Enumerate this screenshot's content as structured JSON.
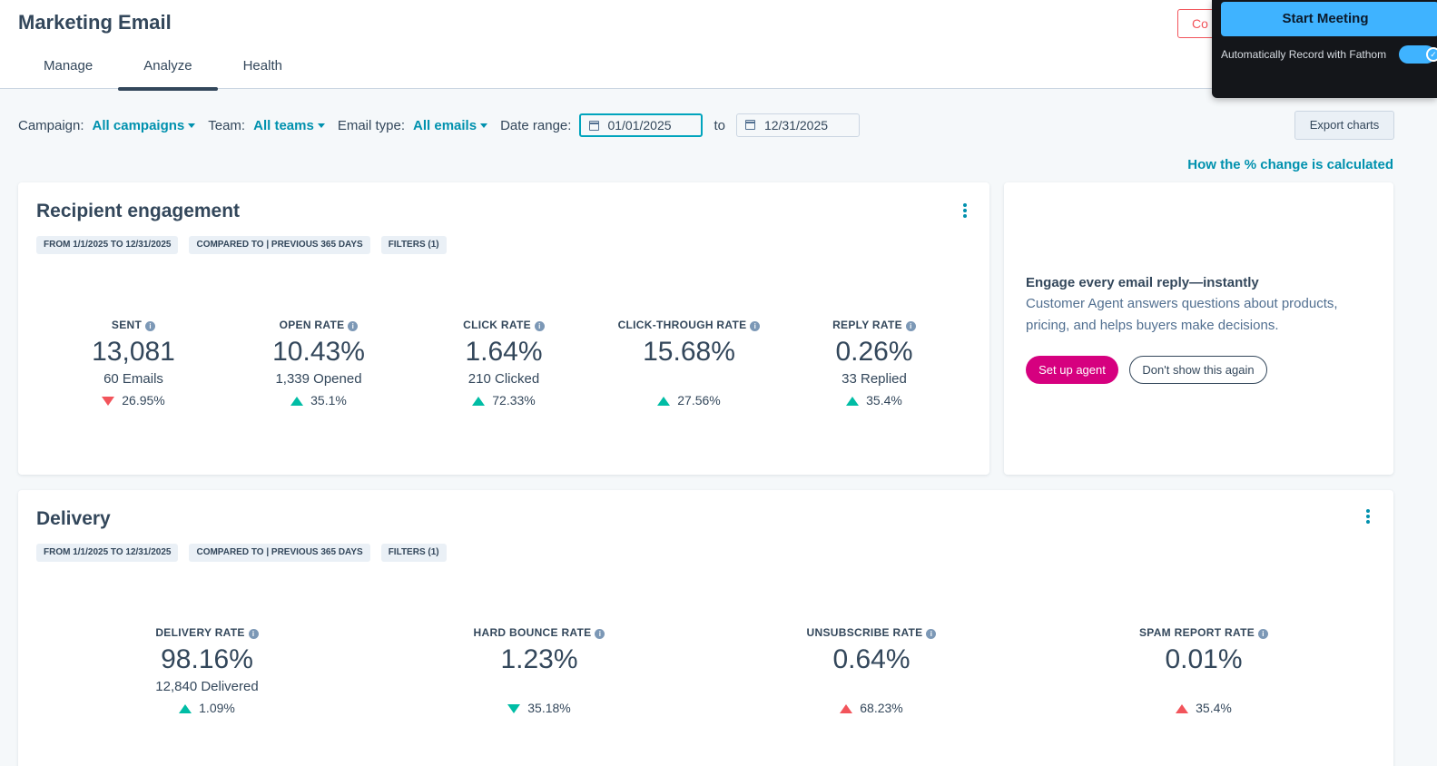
{
  "header": {
    "title": "Marketing Email",
    "tabs": [
      {
        "label": "Manage"
      },
      {
        "label": "Analyze"
      },
      {
        "label": "Health"
      }
    ],
    "partial_button_label": "Co"
  },
  "fathom": {
    "start_meeting_label": "Start Meeting",
    "auto_record_label": "Automatically Record with Fathom",
    "auto_record_enabled": true
  },
  "filters": {
    "campaign_label": "Campaign:",
    "campaign_value": "All campaigns",
    "team_label": "Team:",
    "team_value": "All teams",
    "email_type_label": "Email type:",
    "email_type_value": "All emails",
    "date_range_label": "Date range:",
    "date_from": "01/01/2025",
    "to_label": "to",
    "date_to": "12/31/2025"
  },
  "toolbar": {
    "export_label": "Export charts",
    "how_change_link": "How the % change is calculated"
  },
  "engagement": {
    "title": "Recipient engagement",
    "chips": [
      "From 1/1/2025 to 12/31/2025",
      "Compared to | Previous 365 days",
      "Filters (1)"
    ],
    "metrics": [
      {
        "label": "SENT",
        "value": "13,081",
        "sub": "60 Emails",
        "change": "26.95%",
        "direction": "down"
      },
      {
        "label": "OPEN RATE",
        "value": "10.43%",
        "sub": "1,339 Opened",
        "change": "35.1%",
        "direction": "up"
      },
      {
        "label": "CLICK RATE",
        "value": "1.64%",
        "sub": "210 Clicked",
        "change": "72.33%",
        "direction": "up"
      },
      {
        "label": "CLICK-THROUGH RATE",
        "value": "15.68%",
        "sub": "",
        "change": "27.56%",
        "direction": "up"
      },
      {
        "label": "REPLY RATE",
        "value": "0.26%",
        "sub": "33 Replied",
        "change": "35.4%",
        "direction": "up"
      }
    ]
  },
  "promo": {
    "title": "Engage every email reply—instantly",
    "text": "Customer Agent answers questions about products, pricing, and helps buyers make decisions.",
    "setup_label": "Set up agent",
    "dismiss_label": "Don't show this again"
  },
  "delivery": {
    "title": "Delivery",
    "chips": [
      "From 1/1/2025 to 12/31/2025",
      "Compared to | Previous 365 days",
      "Filters (1)"
    ],
    "metrics": [
      {
        "label": "DELIVERY RATE",
        "value": "98.16%",
        "sub": "12,840 Delivered",
        "change": "1.09%",
        "direction": "up"
      },
      {
        "label": "HARD BOUNCE RATE",
        "value": "1.23%",
        "sub": "",
        "change": "35.18%",
        "direction": "down-good"
      },
      {
        "label": "UNSUBSCRIBE RATE",
        "value": "0.64%",
        "sub": "",
        "change": "68.23%",
        "direction": "up-bad"
      },
      {
        "label": "SPAM REPORT RATE",
        "value": "0.01%",
        "sub": "",
        "change": "35.4%",
        "direction": "up-bad"
      }
    ]
  },
  "colors": {
    "accent": "#0091ae",
    "positive": "#00bda5",
    "negative": "#f2545b",
    "cta": "#d6007f",
    "fathom_blue": "#3fb3ff"
  }
}
